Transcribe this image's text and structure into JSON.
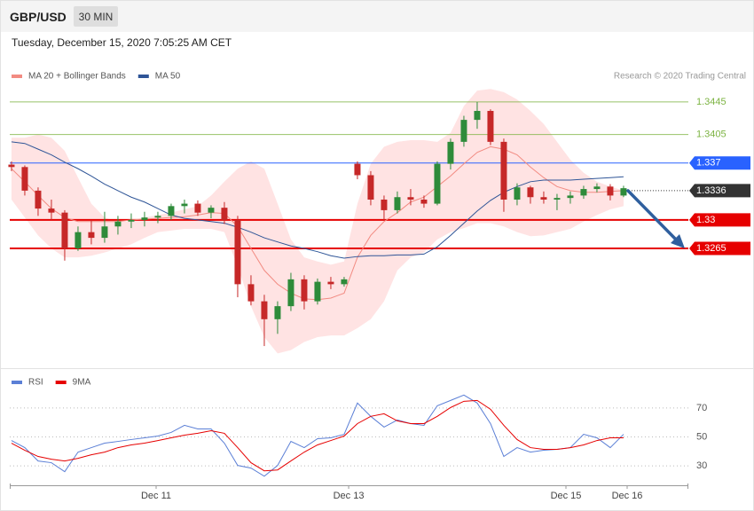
{
  "header": {
    "symbol": "GBP/USD",
    "interval": "30 MIN",
    "timestamp": "Tuesday, December 15, 2020 7:05:25 AM CET"
  },
  "chart_data": [
    {
      "type": "candlestick",
      "credit": "Research © 2020 Trading Central",
      "up_color": "#2e8b3a",
      "down_color": "#c62828",
      "x": [
        0,
        1,
        2,
        3,
        4,
        5,
        6,
        7,
        8,
        9,
        10,
        11,
        12,
        13,
        14,
        15,
        16,
        17,
        18,
        19,
        20,
        21,
        22,
        23,
        24,
        25,
        26,
        27,
        28,
        29,
        30,
        31,
        32,
        33,
        34,
        35,
        36,
        37,
        38,
        39,
        40,
        41,
        42,
        43,
        44,
        45,
        46
      ],
      "xlim": [
        -0.13,
        50.87
      ],
      "ylim": [
        1.312,
        1.347
      ],
      "open": [
        1.3368,
        1.3365,
        1.3336,
        1.3314,
        1.3309,
        1.3265,
        1.3285,
        1.3278,
        1.3292,
        1.3298,
        1.33,
        1.3303,
        1.3305,
        1.3317,
        1.332,
        1.3309,
        1.3315,
        1.33,
        1.3221,
        1.32,
        1.3178,
        1.3194,
        1.3227,
        1.32,
        1.3224,
        1.3221,
        1.3369,
        1.3355,
        1.3325,
        1.3312,
        1.3328,
        1.3325,
        1.332,
        1.3369,
        1.3396,
        1.3423,
        1.3434,
        1.3396,
        1.3325,
        1.334,
        1.3328,
        1.3325,
        1.3327,
        1.333,
        1.3338,
        1.3341,
        1.333
      ],
      "high": [
        1.3372,
        1.3367,
        1.334,
        1.3325,
        1.3312,
        1.3292,
        1.33,
        1.331,
        1.3305,
        1.3308,
        1.331,
        1.331,
        1.332,
        1.3325,
        1.3324,
        1.3318,
        1.3322,
        1.3305,
        1.3232,
        1.3208,
        1.32,
        1.3235,
        1.3232,
        1.3228,
        1.323,
        1.323,
        1.3372,
        1.336,
        1.333,
        1.3335,
        1.3338,
        1.333,
        1.3372,
        1.34,
        1.3428,
        1.3445,
        1.3436,
        1.34,
        1.3345,
        1.3342,
        1.3335,
        1.3332,
        1.3335,
        1.3342,
        1.3345,
        1.3344,
        1.3342
      ],
      "low": [
        1.336,
        1.333,
        1.3305,
        1.33,
        1.325,
        1.3262,
        1.327,
        1.3272,
        1.3282,
        1.329,
        1.3292,
        1.3296,
        1.33,
        1.3308,
        1.3305,
        1.3302,
        1.3295,
        1.3205,
        1.3195,
        1.3145,
        1.316,
        1.3188,
        1.319,
        1.3196,
        1.3215,
        1.3218,
        1.335,
        1.3318,
        1.33,
        1.3308,
        1.3318,
        1.3315,
        1.3318,
        1.3362,
        1.339,
        1.3412,
        1.3392,
        1.331,
        1.3318,
        1.332,
        1.332,
        1.3312,
        1.332,
        1.3326,
        1.3334,
        1.3324,
        1.3328
      ],
      "close": [
        1.3365,
        1.3336,
        1.3314,
        1.3309,
        1.3265,
        1.3285,
        1.3278,
        1.3292,
        1.3298,
        1.33,
        1.3303,
        1.3305,
        1.3317,
        1.332,
        1.3309,
        1.3315,
        1.33,
        1.3221,
        1.32,
        1.3178,
        1.3194,
        1.3227,
        1.32,
        1.3224,
        1.3221,
        1.3227,
        1.3355,
        1.3325,
        1.3312,
        1.3328,
        1.3325,
        1.332,
        1.3369,
        1.3396,
        1.3423,
        1.3434,
        1.3396,
        1.3325,
        1.334,
        1.3328,
        1.3325,
        1.3327,
        1.333,
        1.3338,
        1.3341,
        1.333,
        1.3339
      ],
      "series": [
        {
          "name": "MA 20 + Bollinger Bands",
          "color": "#f28b82",
          "band_color": "#ffe3e3",
          "values": [
            1.3363,
            1.3347,
            1.333,
            1.3314,
            1.3303,
            1.3298,
            1.3298,
            1.3298,
            1.3298,
            1.33,
            1.3301,
            1.3302,
            1.3303,
            1.3304,
            1.3306,
            1.3309,
            1.3308,
            1.3292,
            1.3265,
            1.3238,
            1.3221,
            1.321,
            1.3203,
            1.3202,
            1.3204,
            1.321,
            1.3254,
            1.3281,
            1.3298,
            1.3309,
            1.3322,
            1.3328,
            1.3341,
            1.3354,
            1.3369,
            1.3383,
            1.339,
            1.3387,
            1.338,
            1.3365,
            1.3352,
            1.3341,
            1.3336,
            1.3334,
            1.3334,
            1.3335,
            1.3336
          ],
          "upper": [
            1.3401,
            1.3401,
            1.3405,
            1.3401,
            1.3385,
            1.3352,
            1.332,
            1.3303,
            1.3298,
            1.3298,
            1.3303,
            1.3306,
            1.3309,
            1.3313,
            1.3317,
            1.333,
            1.3347,
            1.3363,
            1.3372,
            1.3363,
            1.332,
            1.3276,
            1.3254,
            1.3249,
            1.3245,
            1.3249,
            1.332,
            1.3369,
            1.339,
            1.3396,
            1.3398,
            1.3398,
            1.3396,
            1.3407,
            1.344,
            1.3459,
            1.3461,
            1.3457,
            1.3448,
            1.3434,
            1.3418,
            1.3396,
            1.3374,
            1.3358,
            1.3347,
            1.3341,
            1.3336
          ],
          "lower": [
            1.3325,
            1.3303,
            1.3281,
            1.3265,
            1.3254,
            1.3254,
            1.3256,
            1.326,
            1.3265,
            1.327,
            1.3278,
            1.3285,
            1.3287,
            1.3289,
            1.3289,
            1.3289,
            1.3285,
            1.3243,
            1.3194,
            1.3156,
            1.3136,
            1.314,
            1.315,
            1.3156,
            1.3158,
            1.3158,
            1.3167,
            1.3178,
            1.32,
            1.3238,
            1.3254,
            1.326,
            1.3276,
            1.3285,
            1.329,
            1.3296,
            1.3296,
            1.3292,
            1.3285,
            1.328,
            1.3281,
            1.3285,
            1.3289,
            1.3298,
            1.3306,
            1.3313,
            1.3317
          ]
        },
        {
          "name": "MA 50",
          "color": "#2f5597",
          "values": [
            1.3396,
            1.3394,
            1.3387,
            1.338,
            1.3371,
            1.3363,
            1.3354,
            1.3344,
            1.3336,
            1.3328,
            1.3322,
            1.3314,
            1.3306,
            1.3302,
            1.33,
            1.3298,
            1.3296,
            1.3291,
            1.3285,
            1.3278,
            1.3273,
            1.3268,
            1.3265,
            1.3261,
            1.3256,
            1.3253,
            1.3255,
            1.3256,
            1.3256,
            1.3257,
            1.3257,
            1.3258,
            1.3267,
            1.3281,
            1.3296,
            1.3311,
            1.3324,
            1.3334,
            1.3341,
            1.3347,
            1.3349,
            1.3349,
            1.3349,
            1.335,
            1.3351,
            1.3352,
            1.3353
          ]
        }
      ],
      "levels": [
        {
          "value": 1.3445,
          "color": "#7cb342",
          "style": "plain"
        },
        {
          "value": 1.3405,
          "color": "#7cb342",
          "style": "plain"
        },
        {
          "value": 1.337,
          "color": "#2962ff",
          "style": "tag"
        },
        {
          "value": 1.33,
          "color": "#e60000",
          "style": "tag-thick"
        },
        {
          "value": 1.3265,
          "color": "#e60000",
          "style": "tag-thick"
        }
      ],
      "last_price": {
        "value": 1.3336,
        "color": "#333333"
      }
    },
    {
      "type": "line",
      "x": [
        0,
        1,
        2,
        3,
        4,
        5,
        6,
        7,
        8,
        9,
        10,
        11,
        12,
        13,
        14,
        15,
        16,
        17,
        18,
        19,
        20,
        21,
        22,
        23,
        24,
        25,
        26,
        27,
        28,
        29,
        30,
        31,
        32,
        33,
        34,
        35,
        36,
        37,
        38,
        39,
        40,
        41,
        42,
        43,
        44,
        45,
        46
      ],
      "xlim": [
        -0.13,
        50.87
      ],
      "xticks": [
        {
          "value": 10.87,
          "label": "Dec 11"
        },
        {
          "value": 25.34,
          "label": "Dec 13"
        },
        {
          "value": 41.67,
          "label": "Dec 15"
        },
        {
          "value": 46.27,
          "label": "Dec 16"
        }
      ],
      "ylim": [
        16,
        84
      ],
      "yticks": [
        30,
        50,
        70
      ],
      "grid": true,
      "series": [
        {
          "name": "RSI",
          "color": "#5b7fd6",
          "values": [
            47.5,
            42.6,
            33.4,
            32.2,
            26.0,
            39.5,
            42.6,
            45.7,
            46.9,
            48.2,
            49.4,
            50.6,
            53.1,
            58.0,
            55.5,
            55.5,
            45.7,
            30.3,
            28.5,
            22.9,
            30.3,
            46.9,
            42.6,
            48.8,
            49.4,
            51.8,
            73.4,
            64.2,
            56.8,
            61.7,
            59.2,
            58.0,
            71.5,
            75.2,
            78.9,
            73.4,
            59.2,
            36.5,
            42.6,
            39.5,
            40.8,
            41.4,
            42.6,
            51.8,
            49.4,
            42.6,
            51.8
          ]
        },
        {
          "name": "9MA",
          "color": "#e60000",
          "values": [
            45.7,
            40.8,
            36.5,
            34.6,
            33.4,
            35.2,
            37.7,
            39.5,
            42.6,
            44.5,
            45.7,
            47.5,
            49.4,
            51.2,
            52.5,
            54.3,
            52.5,
            42.6,
            32.2,
            26.6,
            27.2,
            33.4,
            39.5,
            44.5,
            47.5,
            50.6,
            59.2,
            64.2,
            66.0,
            61.1,
            59.2,
            59.2,
            64.2,
            70.3,
            74.6,
            75.2,
            69.1,
            58.0,
            48.2,
            42.6,
            41.4,
            41.4,
            42.6,
            44.5,
            47.5,
            49.4,
            49.4
          ]
        }
      ]
    }
  ]
}
